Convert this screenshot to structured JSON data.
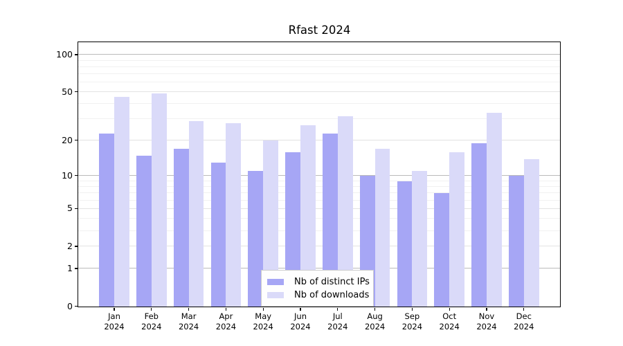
{
  "title": "Rfast 2024",
  "chart_data": {
    "type": "bar",
    "title": "Rfast 2024",
    "categories": [
      {
        "month": "Jan",
        "year": "2024"
      },
      {
        "month": "Feb",
        "year": "2024"
      },
      {
        "month": "Mar",
        "year": "2024"
      },
      {
        "month": "Apr",
        "year": "2024"
      },
      {
        "month": "May",
        "year": "2024"
      },
      {
        "month": "Jun",
        "year": "2024"
      },
      {
        "month": "Jul",
        "year": "2024"
      },
      {
        "month": "Aug",
        "year": "2024"
      },
      {
        "month": "Sep",
        "year": "2024"
      },
      {
        "month": "Oct",
        "year": "2024"
      },
      {
        "month": "Nov",
        "year": "2024"
      },
      {
        "month": "Dec",
        "year": "2024"
      }
    ],
    "series": [
      {
        "name": "Nb of distinct IPs",
        "color": "#a6a6f5",
        "values": [
          23,
          15,
          17,
          13,
          11,
          16,
          23,
          10,
          9,
          7,
          19,
          10
        ]
      },
      {
        "name": "Nb of downloads",
        "color": "#dadaf9",
        "values": [
          46,
          49,
          29,
          28,
          20,
          27,
          32,
          17,
          11,
          16,
          34,
          14
        ]
      }
    ],
    "yticks": [
      0,
      1,
      2,
      5,
      10,
      20,
      50,
      100
    ],
    "minor_gridlines": [
      3,
      4,
      6,
      7,
      8,
      9,
      30,
      40,
      60,
      70,
      80,
      90
    ],
    "scale": "log1p",
    "ymax": 125,
    "ylim": [
      0,
      125
    ],
    "xlabel": "",
    "ylabel": "",
    "grid": true,
    "legend_position": "lower center",
    "grid_colors": {
      "decade": "#bababa",
      "labeled": "#e2e2e2",
      "minor": "#f1f1f1"
    }
  }
}
